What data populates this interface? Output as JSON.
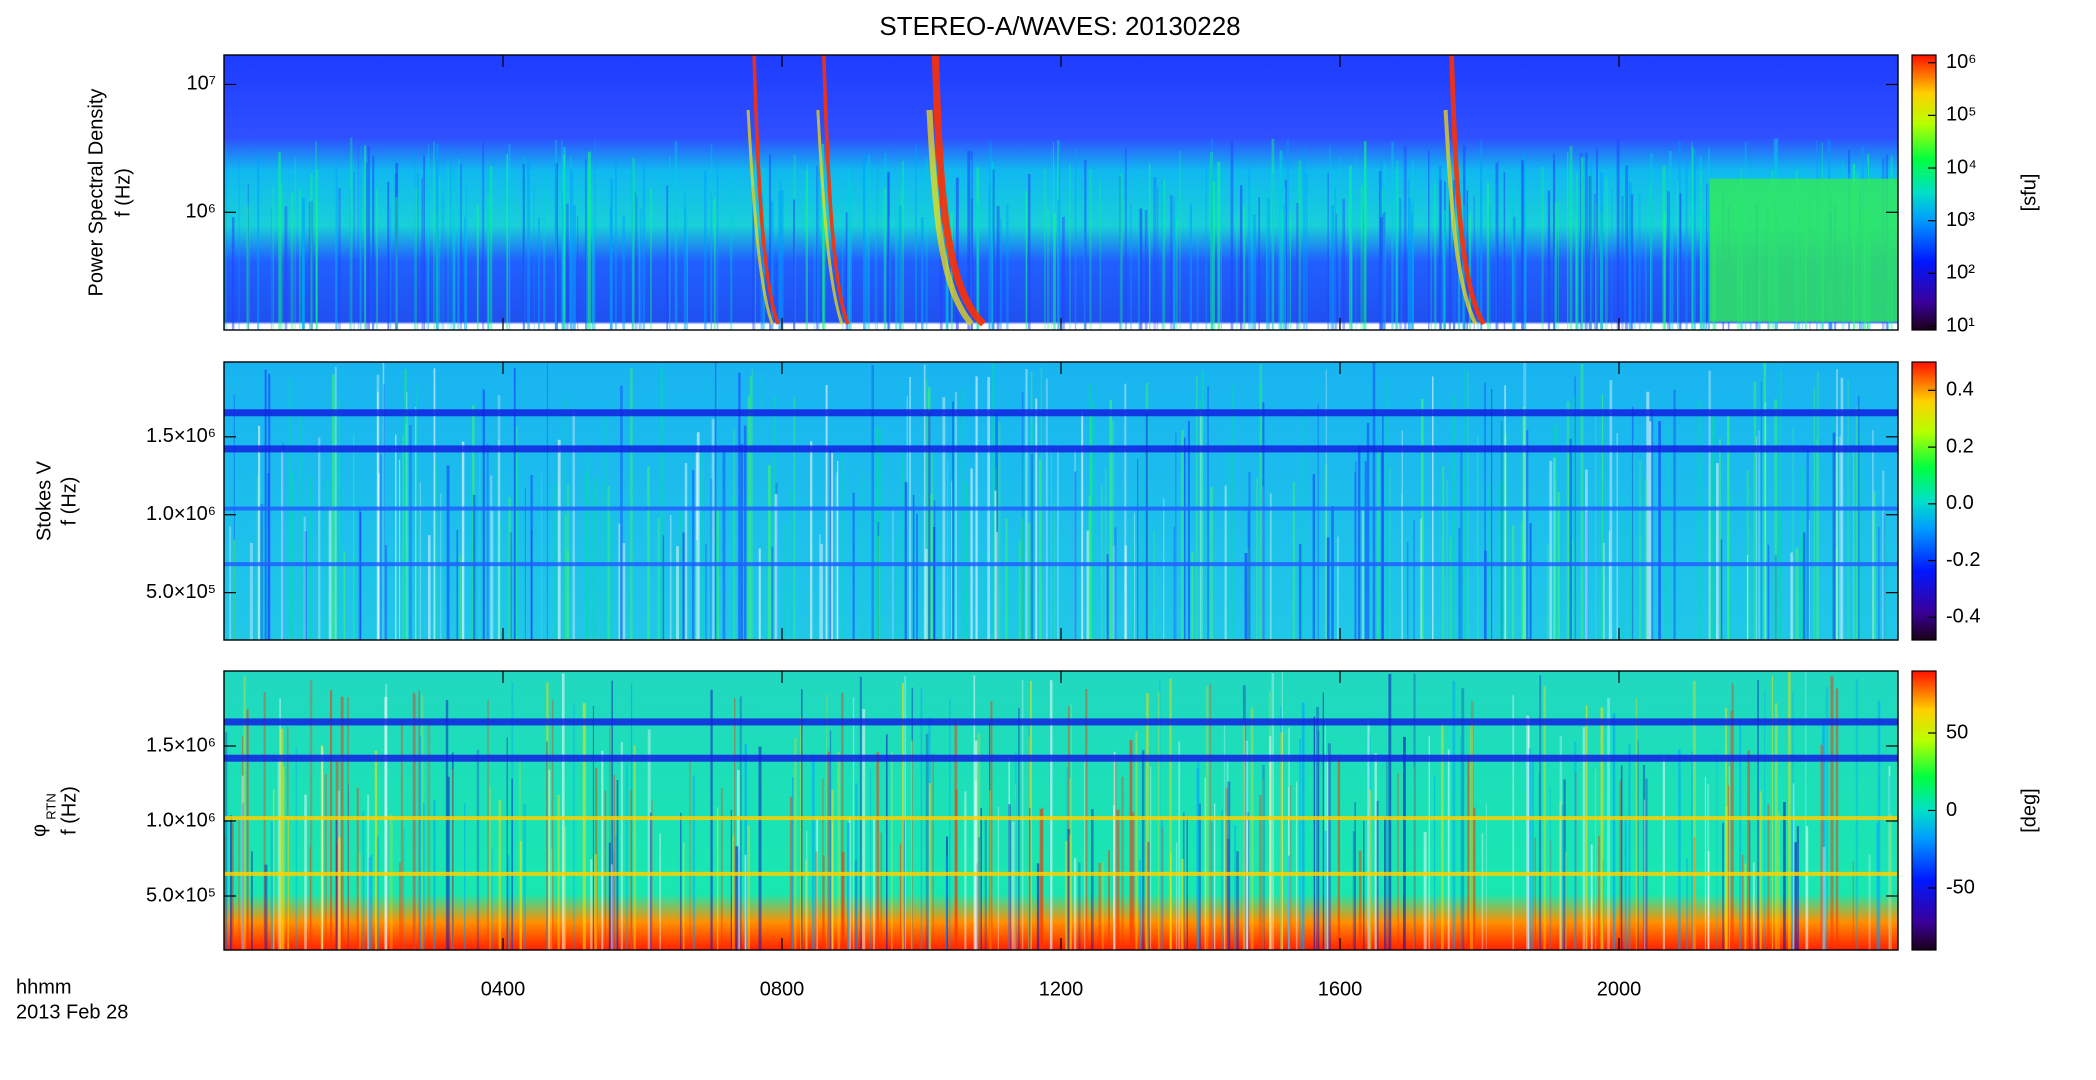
{
  "title": "STEREO-A/WAVES: 20130228",
  "x_caption": [
    "hhmm",
    "2013 Feb 28"
  ],
  "chart_data": [
    {
      "type": "heatmap",
      "ylabel": "Power Spectral Density",
      "ylabel_unit": "f (Hz)",
      "yscale": "log",
      "xlim": [
        0,
        24
      ],
      "xticks": [
        4,
        8,
        12,
        16,
        20
      ],
      "ylim": [
        120000,
        17000000
      ],
      "yticks": [
        {
          "value": 1000000,
          "label": "10⁶"
        },
        {
          "value": 10000000,
          "label": "10⁷"
        }
      ],
      "colorbar": {
        "scale": "log",
        "clim": [
          8.4,
          1400000
        ],
        "label": "[sfu]",
        "ticks": [
          {
            "value": 10,
            "label": "10¹"
          },
          {
            "value": 100,
            "label": "10²"
          },
          {
            "value": 1000,
            "label": "10³"
          },
          {
            "value": 10000,
            "label": "10⁴"
          },
          {
            "value": 100000,
            "label": "10⁵"
          },
          {
            "value": 1000000,
            "label": "10⁶"
          }
        ]
      }
    },
    {
      "type": "heatmap",
      "ylabel": "Stokes V",
      "ylabel_unit": "f (Hz)",
      "yscale": "linear",
      "xlim": [
        0,
        24
      ],
      "xticks": [
        4,
        8,
        12,
        16,
        20
      ],
      "ylim": [
        196000,
        1980000
      ],
      "yticks": [
        {
          "value": 500000,
          "label": "5.0×10⁵"
        },
        {
          "value": 1000000,
          "label": "1.0×10⁶"
        },
        {
          "value": 1500000,
          "label": "1.5×10⁶"
        }
      ],
      "colorbar": {
        "scale": "linear",
        "clim": [
          -0.48,
          0.5
        ],
        "ticks": [
          -0.4,
          -0.2,
          {
            "value": 0,
            "label": "0.0"
          },
          0.2,
          0.4
        ]
      }
    },
    {
      "type": "heatmap",
      "ylabel": "φ",
      "ylabel_sub": "RTN",
      "ylabel_unit": "f (Hz)",
      "yscale": "linear",
      "xlim": [
        0,
        24
      ],
      "xticks": [
        {
          "value": 4,
          "label": "0400"
        },
        {
          "value": 8,
          "label": "0800"
        },
        {
          "value": 12,
          "label": "1200"
        },
        {
          "value": 16,
          "label": "1600"
        },
        {
          "value": 20,
          "label": "2000"
        }
      ],
      "ylim": [
        140000,
        2000000
      ],
      "yticks": [
        {
          "value": 500000,
          "label": "5.0×10⁵"
        },
        {
          "value": 1000000,
          "label": "1.0×10⁶"
        },
        {
          "value": 1500000,
          "label": "1.5×10⁶"
        }
      ],
      "colorbar": {
        "scale": "linear",
        "clim": [
          -90,
          90
        ],
        "label": "[deg]",
        "ticks": [
          -50,
          0,
          50
        ]
      }
    }
  ]
}
